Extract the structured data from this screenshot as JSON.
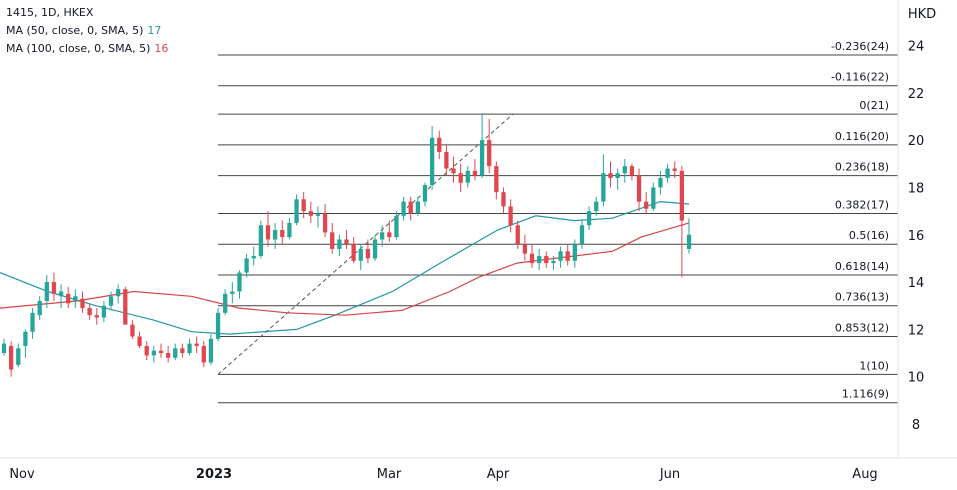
{
  "legend": {
    "symbol": "1415, 1D, HKEX",
    "ma50_label": "MA (50, close, 0, SMA, 5)",
    "ma50_value": "17",
    "ma100_label": "MA (100, close, 0, SMA, 5)",
    "ma100_value": "16"
  },
  "colors": {
    "up": "#26a69a",
    "down": "#e0464e",
    "ma50": "#2196a8",
    "ma100": "#d64545",
    "fib": "#444444",
    "axis_text": "#131722"
  },
  "chart_data": {
    "type": "line",
    "subtype": "candlestick",
    "currency_label": "HKD",
    "y_ticks": [
      8,
      10,
      12,
      14,
      16,
      18,
      20,
      22,
      24
    ],
    "ylim": [
      7.3,
      25.3
    ],
    "x_ticks": [
      "Nov",
      "2023",
      "Mar",
      "Apr",
      "Jun",
      "Aug"
    ],
    "x_tick_bold": [
      false,
      true,
      false,
      false,
      false,
      false
    ],
    "fib_levels": [
      {
        "label": "-0.236(24)",
        "value": 23.6
      },
      {
        "label": "-0.116(22)",
        "value": 22.3
      },
      {
        "label": "0(21)",
        "value": 21.1
      },
      {
        "label": "0.116(20)",
        "value": 19.8
      },
      {
        "label": "0.236(18)",
        "value": 18.5
      },
      {
        "label": "0.382(17)",
        "value": 16.9
      },
      {
        "label": "0.5(16)",
        "value": 15.6
      },
      {
        "label": "0.618(14)",
        "value": 14.3
      },
      {
        "label": "0.736(13)",
        "value": 13.0
      },
      {
        "label": "0.853(12)",
        "value": 11.7
      },
      {
        "label": "1(10)",
        "value": 10.1
      },
      {
        "label": "1.116(9)",
        "value": 8.9
      }
    ],
    "trend_line": {
      "from": [
        0.0,
        10.1
      ],
      "to": [
        1.0,
        21.1
      ]
    },
    "series": [
      {
        "name": "MA (50, close, 0, SMA, 5)",
        "points": [
          [
            0.0,
            14.4
          ],
          [
            0.05,
            13.6
          ],
          [
            0.1,
            13.0
          ],
          [
            0.16,
            12.4
          ],
          [
            0.2,
            11.9
          ],
          [
            0.24,
            11.8
          ],
          [
            0.31,
            12.0
          ],
          [
            0.35,
            12.6
          ],
          [
            0.41,
            13.6
          ],
          [
            0.46,
            14.8
          ],
          [
            0.52,
            16.2
          ],
          [
            0.56,
            16.8
          ],
          [
            0.6,
            16.6
          ],
          [
            0.64,
            16.7
          ],
          [
            0.69,
            17.4
          ],
          [
            0.72,
            17.3
          ]
        ]
      },
      {
        "name": "MA (100, close, 0, SMA, 5)",
        "points": [
          [
            0.0,
            12.9
          ],
          [
            0.08,
            13.2
          ],
          [
            0.14,
            13.6
          ],
          [
            0.2,
            13.4
          ],
          [
            0.25,
            12.9
          ],
          [
            0.3,
            12.7
          ],
          [
            0.36,
            12.6
          ],
          [
            0.42,
            12.8
          ],
          [
            0.47,
            13.6
          ],
          [
            0.5,
            14.2
          ],
          [
            0.54,
            14.8
          ],
          [
            0.6,
            15.1
          ],
          [
            0.64,
            15.3
          ],
          [
            0.67,
            15.9
          ],
          [
            0.72,
            16.5
          ]
        ]
      }
    ],
    "candles": [
      [
        11.0,
        11.6,
        10.9,
        11.4
      ],
      [
        11.3,
        11.5,
        10.0,
        10.3
      ],
      [
        10.5,
        11.4,
        10.4,
        11.2
      ],
      [
        11.3,
        12.0,
        10.8,
        11.9
      ],
      [
        11.9,
        12.9,
        11.6,
        12.7
      ],
      [
        12.6,
        13.4,
        12.4,
        13.2
      ],
      [
        13.2,
        14.3,
        12.9,
        14.0
      ],
      [
        14.0,
        14.4,
        13.2,
        13.5
      ],
      [
        13.4,
        13.9,
        12.9,
        13.6
      ],
      [
        13.5,
        13.8,
        12.9,
        13.1
      ],
      [
        13.2,
        13.7,
        12.9,
        13.4
      ],
      [
        13.3,
        13.6,
        12.7,
        12.9
      ],
      [
        12.9,
        13.1,
        12.4,
        12.6
      ],
      [
        12.6,
        12.9,
        12.2,
        12.5
      ],
      [
        12.5,
        13.2,
        12.3,
        13.0
      ],
      [
        13.0,
        13.6,
        12.8,
        13.4
      ],
      [
        13.4,
        13.9,
        13.1,
        13.7
      ],
      [
        13.7,
        13.8,
        12.3,
        12.2
      ],
      [
        12.2,
        12.4,
        11.6,
        11.7
      ],
      [
        11.7,
        11.9,
        11.2,
        11.3
      ],
      [
        11.3,
        11.5,
        10.7,
        10.9
      ],
      [
        10.9,
        11.3,
        10.6,
        11.1
      ],
      [
        11.1,
        11.4,
        10.8,
        11.0
      ],
      [
        11.0,
        11.3,
        10.6,
        10.8
      ],
      [
        10.8,
        11.4,
        10.7,
        11.2
      ],
      [
        11.2,
        11.4,
        10.8,
        11.0
      ],
      [
        11.0,
        11.6,
        10.9,
        11.4
      ],
      [
        11.4,
        11.7,
        11.0,
        11.3
      ],
      [
        11.3,
        11.5,
        10.4,
        10.6
      ],
      [
        10.6,
        11.8,
        10.5,
        11.6
      ],
      [
        11.6,
        12.9,
        11.5,
        12.7
      ],
      [
        12.7,
        13.7,
        12.6,
        13.5
      ],
      [
        13.5,
        14.0,
        13.1,
        13.6
      ],
      [
        13.6,
        14.5,
        13.3,
        14.4
      ],
      [
        14.4,
        15.2,
        14.2,
        15.0
      ],
      [
        15.0,
        15.5,
        14.7,
        15.1
      ],
      [
        15.1,
        16.6,
        15.0,
        16.4
      ],
      [
        16.4,
        17.0,
        15.5,
        15.8
      ],
      [
        15.8,
        16.5,
        15.4,
        16.2
      ],
      [
        16.2,
        16.6,
        15.6,
        15.9
      ],
      [
        15.9,
        16.7,
        15.8,
        16.5
      ],
      [
        16.5,
        17.7,
        16.4,
        17.5
      ],
      [
        17.5,
        17.8,
        16.7,
        17.0
      ],
      [
        17.0,
        17.4,
        16.5,
        16.8
      ],
      [
        16.8,
        17.2,
        16.3,
        16.9
      ],
      [
        16.9,
        17.3,
        15.9,
        16.1
      ],
      [
        16.1,
        16.5,
        15.2,
        15.4
      ],
      [
        15.4,
        16.0,
        15.1,
        15.8
      ],
      [
        15.8,
        16.2,
        15.4,
        15.6
      ],
      [
        15.6,
        15.9,
        14.8,
        14.9
      ],
      [
        14.9,
        15.6,
        14.5,
        15.4
      ],
      [
        15.4,
        15.8,
        14.8,
        15.0
      ],
      [
        15.0,
        16.0,
        14.9,
        15.8
      ],
      [
        15.8,
        16.4,
        15.5,
        16.1
      ],
      [
        16.1,
        16.6,
        15.7,
        15.9
      ],
      [
        15.9,
        17.0,
        15.8,
        16.8
      ],
      [
        16.8,
        17.6,
        16.6,
        17.4
      ],
      [
        17.4,
        17.6,
        16.6,
        16.9
      ],
      [
        16.9,
        17.6,
        16.8,
        17.4
      ],
      [
        17.4,
        18.2,
        17.2,
        18.1
      ],
      [
        18.1,
        20.6,
        17.9,
        20.1
      ],
      [
        20.1,
        20.4,
        19.2,
        19.5
      ],
      [
        19.5,
        19.8,
        18.5,
        18.8
      ],
      [
        18.8,
        19.3,
        18.2,
        18.6
      ],
      [
        18.6,
        19.0,
        17.8,
        18.2
      ],
      [
        18.2,
        18.9,
        18.0,
        18.7
      ],
      [
        18.7,
        19.2,
        18.3,
        18.5
      ],
      [
        18.5,
        21.1,
        18.4,
        20.0
      ],
      [
        20.0,
        20.9,
        18.6,
        18.9
      ],
      [
        18.9,
        19.1,
        17.5,
        17.8
      ],
      [
        17.8,
        18.0,
        16.9,
        17.2
      ],
      [
        17.2,
        17.5,
        16.1,
        16.4
      ],
      [
        16.4,
        16.6,
        15.4,
        15.6
      ],
      [
        15.6,
        16.0,
        14.9,
        15.2
      ],
      [
        15.2,
        15.6,
        14.6,
        14.8
      ],
      [
        14.8,
        15.4,
        14.5,
        15.1
      ],
      [
        15.1,
        15.3,
        14.6,
        14.8
      ],
      [
        14.8,
        15.1,
        14.5,
        14.9
      ],
      [
        14.9,
        15.5,
        14.6,
        15.3
      ],
      [
        15.3,
        15.6,
        14.7,
        14.9
      ],
      [
        14.9,
        15.8,
        14.6,
        15.6
      ],
      [
        15.6,
        16.6,
        15.4,
        16.4
      ],
      [
        16.4,
        17.2,
        16.2,
        17.0
      ],
      [
        17.0,
        17.6,
        16.8,
        17.4
      ],
      [
        17.4,
        19.4,
        17.2,
        18.6
      ],
      [
        18.6,
        19.1,
        18.0,
        18.4
      ],
      [
        18.4,
        18.8,
        17.9,
        18.6
      ],
      [
        18.6,
        19.2,
        18.2,
        18.9
      ],
      [
        18.9,
        19.0,
        18.3,
        18.5
      ],
      [
        18.5,
        18.8,
        17.0,
        17.4
      ],
      [
        17.4,
        17.8,
        16.9,
        17.1
      ],
      [
        17.1,
        18.2,
        17.0,
        18.0
      ],
      [
        18.0,
        18.7,
        17.7,
        18.4
      ],
      [
        18.4,
        19.0,
        18.2,
        18.8
      ],
      [
        18.8,
        19.1,
        18.4,
        18.7
      ],
      [
        18.7,
        18.9,
        14.2,
        16.6
      ],
      [
        15.4,
        16.7,
        15.2,
        16.0
      ]
    ]
  }
}
